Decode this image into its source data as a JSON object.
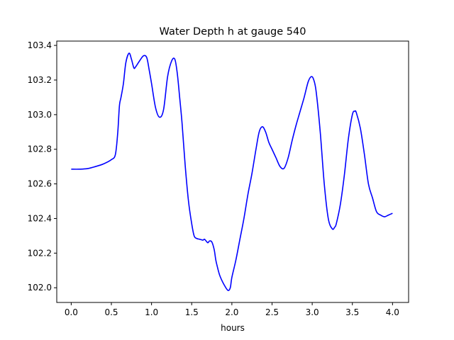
{
  "chart_data": {
    "type": "line",
    "title": "Water Depth h at gauge 540",
    "xlabel": "hours",
    "ylabel": "",
    "xlim": [
      -0.18,
      4.2
    ],
    "ylim": [
      101.915,
      103.425
    ],
    "xticks": [
      0.0,
      0.5,
      1.0,
      1.5,
      2.0,
      2.5,
      3.0,
      3.5,
      4.0
    ],
    "xtick_labels": [
      "0.0",
      "0.5",
      "1.0",
      "1.5",
      "2.0",
      "2.5",
      "3.0",
      "3.5",
      "4.0"
    ],
    "yticks": [
      102.0,
      102.2,
      102.4,
      102.6,
      102.8,
      103.0,
      103.2,
      103.4
    ],
    "ytick_labels": [
      "102.0",
      "102.2",
      "102.4",
      "102.6",
      "102.8",
      "103.0",
      "103.2",
      "103.4"
    ],
    "grid": false,
    "legend": "none",
    "series": [
      {
        "color": "#0000ff",
        "x": [
          0.0,
          0.1,
          0.2,
          0.3,
          0.4,
          0.5,
          0.55,
          0.58,
          0.6,
          0.62,
          0.65,
          0.68,
          0.72,
          0.75,
          0.78,
          0.8,
          0.85,
          0.9,
          0.94,
          0.97,
          1.0,
          1.05,
          1.1,
          1.15,
          1.2,
          1.25,
          1.29,
          1.32,
          1.35,
          1.38,
          1.42,
          1.46,
          1.5,
          1.53,
          1.56,
          1.6,
          1.64,
          1.66,
          1.7,
          1.72,
          1.75,
          1.78,
          1.8,
          1.82,
          1.85,
          1.9,
          1.95,
          1.98,
          2.0,
          2.05,
          2.1,
          2.15,
          2.2,
          2.25,
          2.3,
          2.34,
          2.38,
          2.42,
          2.46,
          2.5,
          2.55,
          2.6,
          2.65,
          2.7,
          2.75,
          2.8,
          2.85,
          2.9,
          2.95,
          2.99,
          3.02,
          3.05,
          3.1,
          3.15,
          3.2,
          3.25,
          3.28,
          3.3,
          3.35,
          3.4,
          3.45,
          3.5,
          3.53,
          3.55,
          3.6,
          3.65,
          3.7,
          3.75,
          3.8,
          3.85,
          3.9,
          3.95,
          4.0
        ],
        "y": [
          102.685,
          102.685,
          102.688,
          102.7,
          102.715,
          102.74,
          102.77,
          102.9,
          103.05,
          103.1,
          103.18,
          103.3,
          103.355,
          103.32,
          103.27,
          103.275,
          103.31,
          103.34,
          103.33,
          103.26,
          103.18,
          103.04,
          102.985,
          103.03,
          103.22,
          103.31,
          103.32,
          103.24,
          103.1,
          102.95,
          102.7,
          102.5,
          102.37,
          102.3,
          102.285,
          102.28,
          102.275,
          102.28,
          102.26,
          102.27,
          102.265,
          102.22,
          102.16,
          102.12,
          102.07,
          102.02,
          101.985,
          102.0,
          102.06,
          102.16,
          102.28,
          102.4,
          102.54,
          102.66,
          102.8,
          102.9,
          102.93,
          102.9,
          102.84,
          102.8,
          102.75,
          102.7,
          102.69,
          102.75,
          102.85,
          102.94,
          103.02,
          103.1,
          103.19,
          103.22,
          103.2,
          103.13,
          102.9,
          102.6,
          102.4,
          102.34,
          102.35,
          102.37,
          102.48,
          102.65,
          102.86,
          103.0,
          103.02,
          103.01,
          102.92,
          102.77,
          102.6,
          102.52,
          102.44,
          102.42,
          102.41,
          102.42,
          102.43
        ]
      }
    ]
  }
}
